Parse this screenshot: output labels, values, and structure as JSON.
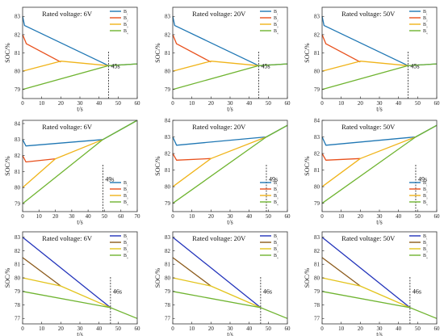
{
  "chart_data": [
    {
      "type": "line",
      "title": "Rated voltage: 6V",
      "xlabel": "t/s",
      "ylabel": "SOC/%",
      "xlim": [
        0,
        60
      ],
      "ylim": [
        78.5,
        83.5
      ],
      "xticks": [
        0,
        10,
        20,
        30,
        40,
        50,
        60
      ],
      "yticks": [
        79,
        80,
        81,
        82,
        83
      ],
      "legend_position": "top-right",
      "annotation": "45s",
      "annotation_x": 45,
      "series": [
        {
          "name": "B₁",
          "color": "#1f77b4",
          "x": [
            0,
            1,
            45,
            60
          ],
          "y": [
            83,
            82.5,
            80.3,
            80.4
          ]
        },
        {
          "name": "B₂",
          "color": "#e8501c",
          "x": [
            0,
            2,
            20
          ],
          "y": [
            82,
            81.5,
            80.5
          ]
        },
        {
          "name": "B₃",
          "color": "#f0b41a",
          "x": [
            0,
            20,
            45
          ],
          "y": [
            80,
            80.55,
            80.3
          ]
        },
        {
          "name": "B₄",
          "color": "#6fb430",
          "x": [
            0,
            45,
            60
          ],
          "y": [
            79,
            80.3,
            80.4
          ]
        }
      ]
    },
    {
      "type": "line",
      "title": "Rated voltage: 20V",
      "xlabel": "t/s",
      "ylabel": "SOC/%",
      "xlim": [
        0,
        60
      ],
      "ylim": [
        78.5,
        83.5
      ],
      "xticks": [
        0,
        10,
        20,
        30,
        40,
        50,
        60
      ],
      "yticks": [
        79,
        80,
        81,
        82,
        83
      ],
      "legend_position": "top-right",
      "annotation": "45s",
      "annotation_x": 45,
      "series": [
        {
          "name": "B₁",
          "color": "#1f77b4",
          "x": [
            0,
            1,
            45,
            60
          ],
          "y": [
            83,
            82.5,
            80.3,
            80.4
          ]
        },
        {
          "name": "B₂",
          "color": "#e8501c",
          "x": [
            0,
            2,
            20
          ],
          "y": [
            82,
            81.5,
            80.5
          ]
        },
        {
          "name": "B₃",
          "color": "#f0b41a",
          "x": [
            0,
            20,
            45
          ],
          "y": [
            80,
            80.55,
            80.3
          ]
        },
        {
          "name": "B₄",
          "color": "#6fb430",
          "x": [
            0,
            45,
            60
          ],
          "y": [
            79,
            80.3,
            80.4
          ]
        }
      ]
    },
    {
      "type": "line",
      "title": "Rated voltage: 50V",
      "xlabel": "t/s",
      "ylabel": "SOC/%",
      "xlim": [
        0,
        60
      ],
      "ylim": [
        78.5,
        83.5
      ],
      "xticks": [
        0,
        10,
        20,
        30,
        40,
        50,
        60
      ],
      "yticks": [
        79,
        80,
        81,
        82,
        83
      ],
      "legend_position": "top-right",
      "annotation": "45s",
      "annotation_x": 45,
      "series": [
        {
          "name": "B₁",
          "color": "#1f77b4",
          "x": [
            0,
            1,
            45,
            60
          ],
          "y": [
            83,
            82.5,
            80.3,
            80.4
          ]
        },
        {
          "name": "B₂",
          "color": "#e8501c",
          "x": [
            0,
            2,
            20
          ],
          "y": [
            82,
            81.5,
            80.5
          ]
        },
        {
          "name": "B₃",
          "color": "#f0b41a",
          "x": [
            0,
            20,
            45
          ],
          "y": [
            80,
            80.55,
            80.3
          ]
        },
        {
          "name": "B₄",
          "color": "#6fb430",
          "x": [
            0,
            45,
            60
          ],
          "y": [
            79,
            80.3,
            80.4
          ]
        }
      ]
    },
    {
      "type": "line",
      "title": "Rated voltage: 6V",
      "xlabel": "t/s",
      "ylabel": "SOC/%",
      "xlim": [
        0,
        70
      ],
      "ylim": [
        78.5,
        84.2
      ],
      "xticks": [
        0,
        10,
        20,
        30,
        40,
        50,
        60,
        70
      ],
      "yticks": [
        79,
        80,
        81,
        82,
        83,
        84
      ],
      "legend_position": "bottom-right",
      "annotation": "49s",
      "annotation_x": 49,
      "series": [
        {
          "name": "B₁",
          "color": "#1f77b4",
          "x": [
            0,
            2,
            49,
            70
          ],
          "y": [
            83,
            82.6,
            83,
            84.2
          ]
        },
        {
          "name": "B₂",
          "color": "#e8501c",
          "x": [
            0,
            2,
            20
          ],
          "y": [
            82,
            81.6,
            81.8
          ]
        },
        {
          "name": "B₃",
          "color": "#f0b41a",
          "x": [
            0,
            20,
            49
          ],
          "y": [
            80,
            81.8,
            83
          ]
        },
        {
          "name": "B₄",
          "color": "#6fb430",
          "x": [
            0,
            49,
            70
          ],
          "y": [
            79,
            83,
            84.2
          ]
        }
      ]
    },
    {
      "type": "line",
      "title": "Rated voltage: 20V",
      "xlabel": "t/s",
      "ylabel": "SOC/%",
      "xlim": [
        0,
        60
      ],
      "ylim": [
        78.5,
        84
      ],
      "xticks": [
        0,
        10,
        20,
        30,
        40,
        50,
        60
      ],
      "yticks": [
        79,
        80,
        81,
        82,
        83,
        84
      ],
      "legend_position": "bottom-right",
      "annotation": "49s",
      "annotation_x": 49,
      "series": [
        {
          "name": "B₁",
          "color": "#1f77b4",
          "x": [
            0,
            2,
            49,
            60
          ],
          "y": [
            83,
            82.5,
            83,
            83.7
          ]
        },
        {
          "name": "B₂",
          "color": "#e8501c",
          "x": [
            0,
            2,
            20
          ],
          "y": [
            82,
            81.6,
            81.7
          ]
        },
        {
          "name": "B₃",
          "color": "#f0b41a",
          "x": [
            0,
            20,
            49
          ],
          "y": [
            80,
            81.7,
            83
          ]
        },
        {
          "name": "B₄",
          "color": "#6fb430",
          "x": [
            0,
            49,
            60
          ],
          "y": [
            79,
            83,
            83.7
          ]
        }
      ]
    },
    {
      "type": "line",
      "title": "Rated voltage: 50V",
      "xlabel": "t/s",
      "ylabel": "SOC/%",
      "xlim": [
        0,
        60
      ],
      "ylim": [
        78.5,
        84
      ],
      "xticks": [
        0,
        10,
        20,
        30,
        40,
        50,
        60
      ],
      "yticks": [
        79,
        80,
        81,
        82,
        83,
        84
      ],
      "legend_position": "bottom-right",
      "annotation": "49s",
      "annotation_x": 49,
      "series": [
        {
          "name": "B₁",
          "color": "#1f77b4",
          "x": [
            0,
            2,
            49,
            60
          ],
          "y": [
            83,
            82.5,
            83,
            83.7
          ]
        },
        {
          "name": "B₂",
          "color": "#e8501c",
          "x": [
            0,
            2,
            20
          ],
          "y": [
            82,
            81.6,
            81.7
          ]
        },
        {
          "name": "B₃",
          "color": "#f0b41a",
          "x": [
            0,
            20,
            49
          ],
          "y": [
            80,
            81.7,
            83
          ]
        },
        {
          "name": "B₄",
          "color": "#6fb430",
          "x": [
            0,
            49,
            60
          ],
          "y": [
            79,
            83,
            83.7
          ]
        }
      ]
    },
    {
      "type": "line",
      "title": "Rated voltage: 6V",
      "xlabel": "t/s",
      "ylabel": "SOC/%",
      "xlim": [
        0,
        60
      ],
      "ylim": [
        76.6,
        83.4
      ],
      "xticks": [
        0,
        10,
        20,
        30,
        40,
        50,
        60
      ],
      "yticks": [
        77,
        78,
        79,
        80,
        81,
        82,
        83
      ],
      "legend_position": "top-right",
      "annotation": "46s",
      "annotation_x": 46,
      "series": [
        {
          "name": "B₁",
          "color": "#2233bb",
          "x": [
            0,
            46
          ],
          "y": [
            83,
            77.8
          ]
        },
        {
          "name": "B₂",
          "color": "#8b5a1a",
          "x": [
            0,
            20
          ],
          "y": [
            81.5,
            79.4
          ]
        },
        {
          "name": "B₃",
          "color": "#e3c41c",
          "x": [
            0,
            20,
            46
          ],
          "y": [
            80,
            79.4,
            77.8
          ]
        },
        {
          "name": "B₄",
          "color": "#6fb430",
          "x": [
            0,
            46,
            60
          ],
          "y": [
            79,
            77.8,
            77
          ]
        }
      ]
    },
    {
      "type": "line",
      "title": "Rated voltage: 20V",
      "xlabel": "t/s",
      "ylabel": "SOC/%",
      "xlim": [
        0,
        60
      ],
      "ylim": [
        76.6,
        83.4
      ],
      "xticks": [
        0,
        10,
        20,
        30,
        40,
        50,
        60
      ],
      "yticks": [
        77,
        78,
        79,
        80,
        81,
        82,
        83
      ],
      "legend_position": "top-right",
      "annotation": "46s",
      "annotation_x": 46,
      "series": [
        {
          "name": "B₁",
          "color": "#2233bb",
          "x": [
            0,
            46
          ],
          "y": [
            83,
            77.8
          ]
        },
        {
          "name": "B₂",
          "color": "#8b5a1a",
          "x": [
            0,
            20
          ],
          "y": [
            81.5,
            79.4
          ]
        },
        {
          "name": "B₃",
          "color": "#e3c41c",
          "x": [
            0,
            20,
            46
          ],
          "y": [
            80,
            79.4,
            77.8
          ]
        },
        {
          "name": "B₄",
          "color": "#6fb430",
          "x": [
            0,
            46,
            60
          ],
          "y": [
            79,
            77.8,
            77
          ]
        }
      ]
    },
    {
      "type": "line",
      "title": "Rated voltage: 50V",
      "xlabel": "t/s",
      "ylabel": "SOC/%",
      "xlim": [
        0,
        60
      ],
      "ylim": [
        76.6,
        83.4
      ],
      "xticks": [
        0,
        10,
        20,
        30,
        40,
        50,
        60
      ],
      "yticks": [
        77,
        78,
        79,
        80,
        81,
        82,
        83
      ],
      "legend_position": "top-right",
      "annotation": "46s",
      "annotation_x": 46,
      "series": [
        {
          "name": "B₁",
          "color": "#2233bb",
          "x": [
            0,
            46
          ],
          "y": [
            83,
            77.8
          ]
        },
        {
          "name": "B₂",
          "color": "#8b5a1a",
          "x": [
            0,
            20
          ],
          "y": [
            81.5,
            79.4
          ]
        },
        {
          "name": "B₃",
          "color": "#e3c41c",
          "x": [
            0,
            20,
            46
          ],
          "y": [
            80,
            79.4,
            77.8
          ]
        },
        {
          "name": "B₄",
          "color": "#6fb430",
          "x": [
            0,
            46,
            60
          ],
          "y": [
            79,
            77.8,
            77
          ]
        }
      ]
    }
  ]
}
